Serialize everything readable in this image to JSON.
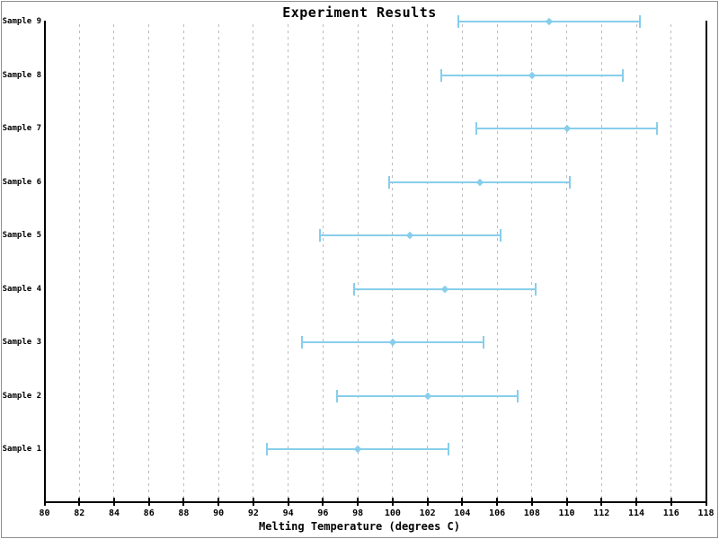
{
  "chart_data": {
    "type": "scatter",
    "subtype": "horizontal-error-bar",
    "title": "Experiment Results",
    "xlabel": "Melting Temperature (degrees C)",
    "ylabel": "",
    "xlim": [
      80,
      118
    ],
    "xticks": [
      80,
      82,
      84,
      86,
      88,
      90,
      92,
      94,
      96,
      98,
      100,
      102,
      104,
      106,
      108,
      110,
      112,
      114,
      116,
      118
    ],
    "grid": "vertical dashed gridlines at interior x ticks",
    "legend": "none",
    "marker": "diamond",
    "categories": [
      "Sample 1",
      "Sample 2",
      "Sample 3",
      "Sample 4",
      "Sample 5",
      "Sample 6",
      "Sample 7",
      "Sample 8",
      "Sample 9"
    ],
    "points": [
      {
        "label": "Sample 1",
        "value": 98,
        "xerr": 5.2
      },
      {
        "label": "Sample 2",
        "value": 102,
        "xerr": 5.2
      },
      {
        "label": "Sample 3",
        "value": 100,
        "xerr": 5.2
      },
      {
        "label": "Sample 4",
        "value": 103,
        "xerr": 5.2
      },
      {
        "label": "Sample 5",
        "value": 101,
        "xerr": 5.2
      },
      {
        "label": "Sample 6",
        "value": 105,
        "xerr": 5.2
      },
      {
        "label": "Sample 7",
        "value": 110,
        "xerr": 5.2
      },
      {
        "label": "Sample 8",
        "value": 108,
        "xerr": 5.2
      },
      {
        "label": "Sample 9",
        "value": 109,
        "xerr": 5.2
      }
    ]
  },
  "colors": {
    "data": "#87ceeb",
    "grid": "#bdbdbd",
    "axis": "#000000",
    "frame": "#8f8f8f",
    "background": "#ffffff"
  }
}
